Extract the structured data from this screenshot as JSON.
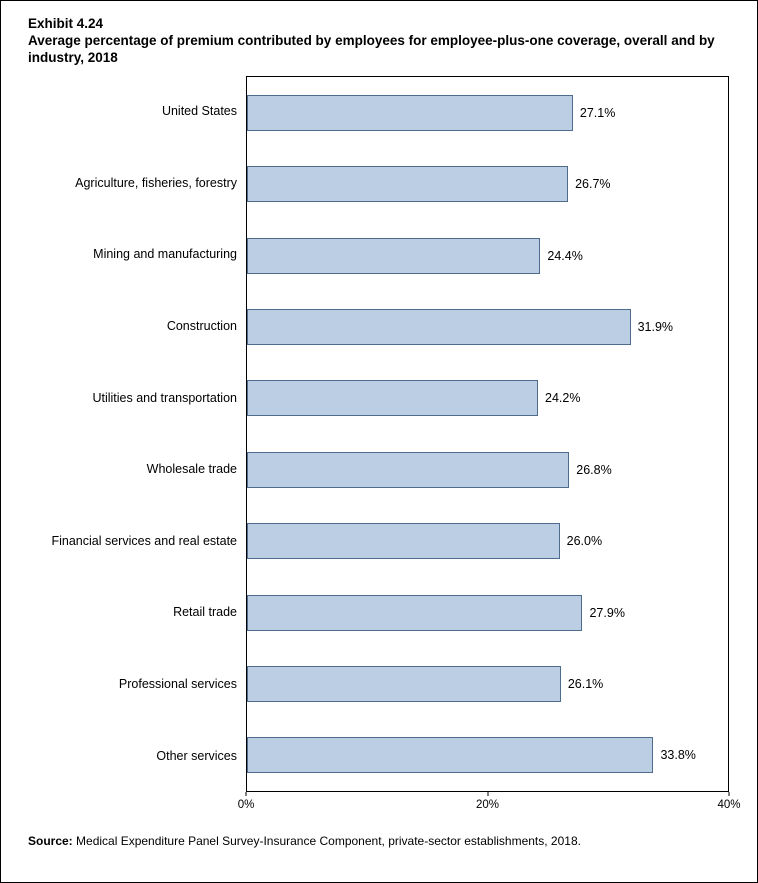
{
  "header": {
    "exhibit": "Exhibit 4.24"
  },
  "chart_data": {
    "type": "bar",
    "orientation": "horizontal",
    "title": "Average percentage of premium contributed by employees for employee-plus-one coverage, overall and by industry, 2018",
    "categories": [
      "United States",
      "Agriculture, fisheries, forestry",
      "Mining and manufacturing",
      "Construction",
      "Utilities and transportation",
      "Wholesale trade",
      "Financial services and real estate",
      "Retail trade",
      "Professional services",
      "Other services"
    ],
    "values": [
      27.1,
      26.7,
      24.4,
      31.9,
      24.2,
      26.8,
      26.0,
      27.9,
      26.1,
      33.8
    ],
    "value_labels": [
      "27.1%",
      "26.7%",
      "24.4%",
      "31.9%",
      "24.2%",
      "26.8%",
      "26.0%",
      "27.9%",
      "26.1%",
      "33.8%"
    ],
    "xlim": [
      0,
      40
    ],
    "x_ticks": [
      {
        "value": 0,
        "label": "0%"
      },
      {
        "value": 20,
        "label": "20%"
      },
      {
        "value": 40,
        "label": "40%"
      }
    ],
    "grid": "off",
    "legend": "none",
    "bar_fill": "#bccee4",
    "bar_border": "#4e6d8c"
  },
  "footer": {
    "source_prefix": "Source:",
    "source_text": " Medical Expenditure Panel Survey-Insurance Component, private-sector establishments, 2018."
  }
}
